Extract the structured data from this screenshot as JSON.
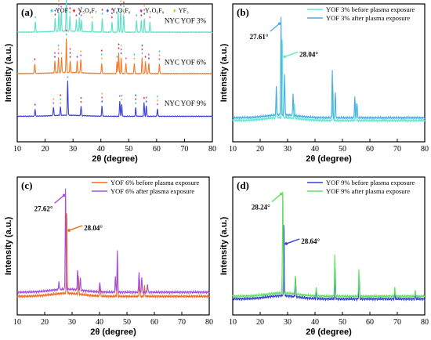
{
  "chart_data": [
    {
      "panel": "(a)",
      "type": "line",
      "xlabel": "2θ (degree)",
      "ylabel": "Intensity (a.u.)",
      "xlim": [
        10,
        80
      ],
      "xticks": [
        10,
        20,
        30,
        40,
        50,
        60,
        70,
        80
      ],
      "legend": {
        "placement": "top",
        "entries": [
          {
            "symbol": "♦",
            "name": "YOF",
            "color": "#2bd9c0"
          },
          {
            "symbol": "♦",
            "name": "Y₅O₄F₇",
            "color": "#e8372b"
          },
          {
            "symbol": "♦",
            "name": "Y₆O₅F₈",
            "color": "#4a63d6"
          },
          {
            "symbol": "♦",
            "name": "Y₇O₆F₉",
            "color": "#e84fbf"
          },
          {
            "symbol": "♦",
            "name": "YF₃",
            "color": "#d9c23a"
          }
        ]
      },
      "series": [
        {
          "label": "NYC YOF 3%",
          "color": "#5be0c8",
          "peaks": [
            [
              16.5,
              0.3
            ],
            [
              23.6,
              0.38
            ],
            [
              24.9,
              0.55
            ],
            [
              25.8,
              0.6
            ],
            [
              27.61,
              1.0
            ],
            [
              28.9,
              0.45
            ],
            [
              31.2,
              0.35
            ],
            [
              32.3,
              0.4
            ],
            [
              33.0,
              0.35
            ],
            [
              36.9,
              0.3
            ],
            [
              40.5,
              0.4
            ],
            [
              44.0,
              0.3
            ],
            [
              46.2,
              0.55
            ],
            [
              47.1,
              0.65
            ],
            [
              48.2,
              0.5
            ],
            [
              52.8,
              0.35
            ],
            [
              54.5,
              0.35
            ],
            [
              55.6,
              0.4
            ],
            [
              57.6,
              0.3
            ]
          ]
        },
        {
          "label": "NYC YOF 6%",
          "color": "#f27a2b",
          "peaks": [
            [
              16.3,
              0.28
            ],
            [
              23.5,
              0.35
            ],
            [
              24.8,
              0.45
            ],
            [
              25.9,
              0.45
            ],
            [
              27.62,
              1.0
            ],
            [
              29.0,
              0.35
            ],
            [
              31.5,
              0.35
            ],
            [
              32.8,
              0.4
            ],
            [
              40.3,
              0.3
            ],
            [
              45.8,
              0.35
            ],
            [
              46.4,
              0.6
            ],
            [
              47.3,
              0.45
            ],
            [
              49.0,
              0.3
            ],
            [
              52.0,
              0.3
            ],
            [
              54.8,
              0.45
            ],
            [
              56.0,
              0.35
            ],
            [
              57.2,
              0.3
            ],
            [
              61.0,
              0.28
            ]
          ]
        },
        {
          "label": "NYC YOF 9%",
          "color": "#3a3fd8",
          "peaks": [
            [
              16.4,
              0.2
            ],
            [
              23.0,
              0.25
            ],
            [
              25.5,
              0.25
            ],
            [
              28.1,
              1.0
            ],
            [
              32.9,
              0.28
            ],
            [
              40.4,
              0.3
            ],
            [
              46.8,
              0.45
            ],
            [
              47.5,
              0.35
            ],
            [
              52.5,
              0.25
            ],
            [
              55.5,
              0.4
            ],
            [
              56.3,
              0.3
            ],
            [
              60.3,
              0.22
            ]
          ]
        }
      ]
    },
    {
      "panel": "(b)",
      "type": "line",
      "xlabel": "2θ (degree)",
      "ylabel": "Intensity (a.u.)",
      "xlim": [
        10,
        80
      ],
      "xticks": [
        10,
        20,
        30,
        40,
        50,
        60,
        70,
        80
      ],
      "legend": {
        "placement": "top-right"
      },
      "annotations": [
        {
          "text": "27.61°",
          "x": 27.61
        },
        {
          "text": "28.04°",
          "x": 28.04
        }
      ],
      "series": [
        {
          "name": "YOF 3% before plasma exposure",
          "color": "#62e8d0",
          "peaks": [
            [
              25.9,
              0.22
            ],
            [
              28.04,
              0.82
            ],
            [
              32.5,
              0.15
            ],
            [
              46.5,
              0.35
            ],
            [
              54.8,
              0.17
            ]
          ]
        },
        {
          "name": "YOF 3% after plasma exposure",
          "color": "#4aaee6",
          "peaks": [
            [
              25.9,
              0.3
            ],
            [
              27.61,
              1.0
            ],
            [
              28.9,
              0.42
            ],
            [
              32.0,
              0.22
            ],
            [
              46.3,
              0.48
            ],
            [
              47.4,
              0.25
            ],
            [
              54.5,
              0.22
            ],
            [
              55.3,
              0.15
            ]
          ]
        }
      ]
    },
    {
      "panel": "(c)",
      "type": "line",
      "xlabel": "2θ (degree)",
      "ylabel": "Intensity (a.u.)",
      "xlim": [
        10,
        80
      ],
      "xticks": [
        10,
        20,
        30,
        40,
        50,
        60,
        70,
        80
      ],
      "legend": {
        "placement": "top-right"
      },
      "annotations": [
        {
          "text": "27.62°",
          "x": 27.62
        },
        {
          "text": "28.04°",
          "x": 28.04
        }
      ],
      "series": [
        {
          "name": "YOF 6% before plasma exposure",
          "color": "#f26b1d",
          "peaks": [
            [
              28.04,
              0.82
            ],
            [
              32.3,
              0.18
            ],
            [
              40.2,
              0.12
            ],
            [
              46.5,
              0.3
            ],
            [
              54.6,
              0.17
            ],
            [
              56.4,
              0.1
            ]
          ]
        },
        {
          "name": "YOF 6% after plasma exposure",
          "color": "#a050e0",
          "peaks": [
            [
              25.2,
              0.08
            ],
            [
              27.62,
              1.0
            ],
            [
              32.0,
              0.2
            ],
            [
              33.0,
              0.12
            ],
            [
              40.1,
              0.1
            ],
            [
              45.8,
              0.15
            ],
            [
              46.5,
              0.4
            ],
            [
              54.4,
              0.2
            ],
            [
              55.4,
              0.14
            ],
            [
              57.5,
              0.08
            ]
          ]
        }
      ]
    },
    {
      "panel": "(d)",
      "type": "line",
      "xlabel": "2θ (degree)",
      "ylabel": "Intensity (a.u.)",
      "xlim": [
        10,
        80
      ],
      "xticks": [
        10,
        20,
        30,
        40,
        50,
        60,
        70,
        80
      ],
      "legend": {
        "placement": "top-right"
      },
      "annotations": [
        {
          "text": "28.24°",
          "x": 28.24
        },
        {
          "text": "28.64°",
          "x": 28.64
        }
      ],
      "series": [
        {
          "name": "YOF 9% before plasma exposure",
          "color": "#3a3fd8",
          "peaks": [
            [
              28.64,
              0.68
            ],
            [
              32.9,
              0.18
            ],
            [
              40.5,
              0.08
            ],
            [
              47.3,
              0.3
            ],
            [
              56.1,
              0.2
            ],
            [
              69.1,
              0.06
            ],
            [
              76.6,
              0.04
            ]
          ]
        },
        {
          "name": "YOF 9% after plasma exposure",
          "color": "#5fe35f",
          "peaks": [
            [
              28.24,
              1.0
            ],
            [
              32.8,
              0.18
            ],
            [
              40.4,
              0.08
            ],
            [
              47.2,
              0.38
            ],
            [
              56.0,
              0.25
            ],
            [
              69.1,
              0.08
            ],
            [
              76.6,
              0.05
            ]
          ]
        }
      ]
    }
  ]
}
